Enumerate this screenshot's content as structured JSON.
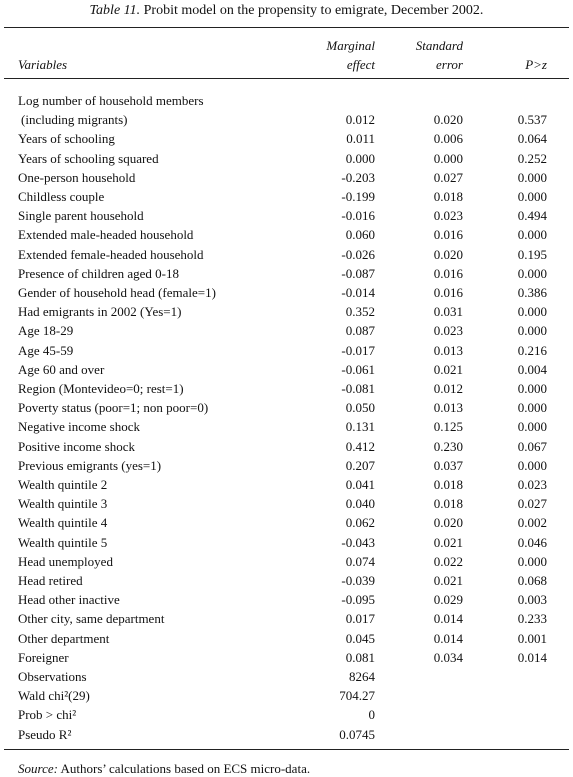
{
  "title": {
    "label": "Table 11.",
    "text": "Probit model on the propensity to emigrate, December 2002."
  },
  "header": {
    "variables": "Variables",
    "columns": [
      [
        "Marginal",
        "effect"
      ],
      [
        "Standard",
        "error"
      ],
      [
        "P>z"
      ]
    ]
  },
  "table": {
    "rows": [
      {
        "label": [
          "Log number of household members",
          "(including migrants)"
        ],
        "cells": [
          "0.012",
          "0.020",
          "0.537"
        ]
      },
      {
        "label": [
          "Years of schooling"
        ],
        "cells": [
          "0.011",
          "0.006",
          "0.064"
        ]
      },
      {
        "label": [
          "Years of schooling squared"
        ],
        "cells": [
          "0.000",
          "0.000",
          "0.252"
        ]
      },
      {
        "label": [
          "One-person household"
        ],
        "cells": [
          "-0.203",
          "0.027",
          "0.000"
        ]
      },
      {
        "label": [
          "Childless couple"
        ],
        "cells": [
          "-0.199",
          "0.018",
          "0.000"
        ]
      },
      {
        "label": [
          "Single parent household"
        ],
        "cells": [
          "-0.016",
          "0.023",
          "0.494"
        ]
      },
      {
        "label": [
          "Extended male-headed household"
        ],
        "cells": [
          "0.060",
          "0.016",
          "0.000"
        ]
      },
      {
        "label": [
          "Extended female-headed household"
        ],
        "cells": [
          "-0.026",
          "0.020",
          "0.195"
        ]
      },
      {
        "label": [
          "Presence of children aged 0-18"
        ],
        "cells": [
          "-0.087",
          "0.016",
          "0.000"
        ]
      },
      {
        "label": [
          "Gender of household head (female=1)"
        ],
        "cells": [
          "-0.014",
          "0.016",
          "0.386"
        ]
      },
      {
        "label": [
          "Had emigrants in 2002 (Yes=1)"
        ],
        "cells": [
          "0.352",
          "0.031",
          "0.000"
        ]
      },
      {
        "label": [
          "Age 18-29"
        ],
        "cells": [
          "0.087",
          "0.023",
          "0.000"
        ]
      },
      {
        "label": [
          "Age 45-59"
        ],
        "cells": [
          "-0.017",
          "0.013",
          "0.216"
        ]
      },
      {
        "label": [
          "Age 60 and over"
        ],
        "cells": [
          "-0.061",
          "0.021",
          "0.004"
        ]
      },
      {
        "label": [
          "Region (Montevideo=0; rest=1)"
        ],
        "cells": [
          "-0.081",
          "0.012",
          "0.000"
        ]
      },
      {
        "label": [
          "Poverty status (poor=1; non poor=0)"
        ],
        "cells": [
          "0.050",
          "0.013",
          "0.000"
        ]
      },
      {
        "label": [
          "Negative income shock"
        ],
        "cells": [
          "0.131",
          "0.125",
          "0.000"
        ]
      },
      {
        "label": [
          "Positive income shock"
        ],
        "cells": [
          "0.412",
          "0.230",
          "0.067"
        ]
      },
      {
        "label": [
          "Previous emigrants (yes=1)"
        ],
        "cells": [
          "0.207",
          "0.037",
          "0.000"
        ]
      },
      {
        "label": [
          "Wealth quintile 2"
        ],
        "cells": [
          "0.041",
          "0.018",
          "0.023"
        ]
      },
      {
        "label": [
          "Wealth quintile 3"
        ],
        "cells": [
          "0.040",
          "0.018",
          "0.027"
        ]
      },
      {
        "label": [
          "Wealth quintile 4"
        ],
        "cells": [
          "0.062",
          "0.020",
          "0.002"
        ]
      },
      {
        "label": [
          "Wealth quintile 5"
        ],
        "cells": [
          "-0.043",
          "0.021",
          "0.046"
        ]
      },
      {
        "label": [
          "Head unemployed"
        ],
        "cells": [
          "0.074",
          "0.022",
          "0.000"
        ]
      },
      {
        "label": [
          "Head retired"
        ],
        "cells": [
          "-0.039",
          "0.021",
          "0.068"
        ]
      },
      {
        "label": [
          "Head other inactive"
        ],
        "cells": [
          "-0.095",
          "0.029",
          "0.003"
        ]
      },
      {
        "label": [
          "Other city, same department"
        ],
        "cells": [
          "0.017",
          "0.014",
          "0.233"
        ]
      },
      {
        "label": [
          "Other department"
        ],
        "cells": [
          "0.045",
          "0.014",
          "0.001"
        ]
      },
      {
        "label": [
          "Foreigner"
        ],
        "cells": [
          "0.081",
          "0.034",
          "0.014"
        ]
      },
      {
        "label": [
          "Observations"
        ],
        "cells": [
          "8264"
        ]
      },
      {
        "label": [
          "Wald chi²(29)"
        ],
        "cells": [
          "704.27"
        ]
      },
      {
        "label": [
          "Prob > chi²"
        ],
        "cells": [
          "0"
        ]
      },
      {
        "label": [
          "Pseudo R²"
        ],
        "cells": [
          "0.0745"
        ]
      }
    ]
  },
  "source": {
    "label": "Source:",
    "text": "Authors’ calculations based on ECS micro-data."
  }
}
